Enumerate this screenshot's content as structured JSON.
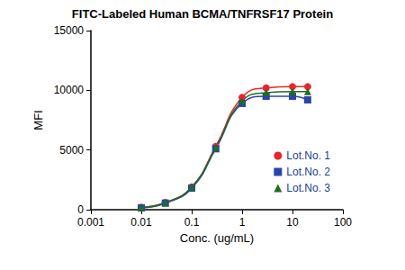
{
  "chart_data": {
    "type": "line",
    "title": "FITC-Labeled Human BCMA/TNFRSF17 Protein",
    "x_label": "Conc. (ug/mL)",
    "y_label": "MFI",
    "x": [
      0.01,
      0.03,
      0.1,
      0.3,
      1,
      3,
      10,
      20
    ],
    "series": [
      {
        "name": "Lot.No. 1",
        "color": "#e8262a",
        "marker": "circle",
        "line_style": "solid",
        "values": [
          200,
          600,
          1900,
          5300,
          9400,
          10200,
          10300,
          10300
        ]
      },
      {
        "name": "Lot.No. 2",
        "color": "#2a45a8",
        "marker": "square",
        "line_style": "solid",
        "values": [
          150,
          550,
          1800,
          5100,
          8900,
          9500,
          9500,
          9200
        ]
      },
      {
        "name": "Lot.No. 3",
        "color": "#1e6e1e",
        "marker": "triangle",
        "line_style": "solid",
        "values": [
          180,
          580,
          1900,
          5200,
          9100,
          9800,
          9900,
          9900
        ]
      }
    ],
    "xlim": [
      0.001,
      100
    ],
    "xticks": [
      0.001,
      0.01,
      0.1,
      1,
      10,
      100
    ],
    "ylim": [
      0,
      15000
    ],
    "yticks": [
      0,
      5000,
      10000,
      15000
    ],
    "log": "x",
    "grid": false,
    "legend": "lower right"
  }
}
